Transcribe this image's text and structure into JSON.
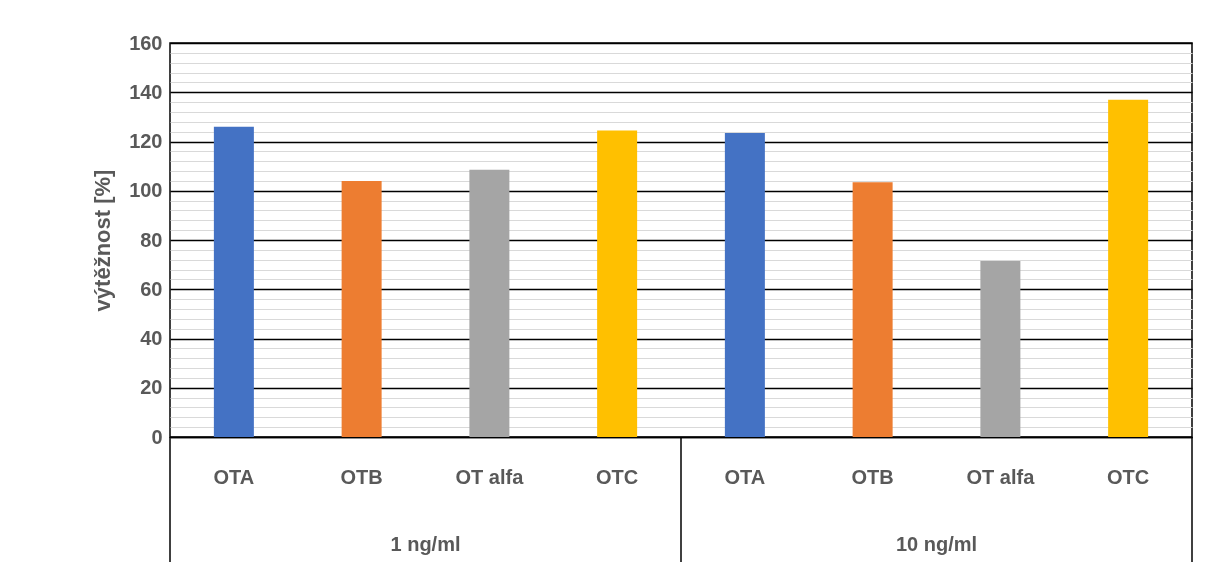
{
  "chart_data": {
    "type": "bar",
    "ylabel": "výtěžnost [%]",
    "categories": [
      "OTA",
      "OTB",
      "OT alfa",
      "OTC",
      "OTA",
      "OTB",
      "OT alfa",
      "OTC"
    ],
    "values": [
      126,
      104,
      108.5,
      124.5,
      123.5,
      103.5,
      71.5,
      137
    ],
    "colors": [
      "#4472c4",
      "#ed7d31",
      "#a5a5a5",
      "#ffc000",
      "#4472c4",
      "#ed7d31",
      "#a5a5a5",
      "#ffc000"
    ],
    "ylim": [
      0,
      160
    ],
    "yticks": [
      0,
      {
        "value": 4,
        "label": null
      },
      {
        "value": 8,
        "label": null
      },
      {
        "value": 12,
        "label": null
      },
      {
        "value": 16,
        "label": null
      },
      20,
      {
        "value": 24,
        "label": null
      },
      {
        "value": 28,
        "label": null
      },
      {
        "value": 32,
        "label": null
      },
      {
        "value": 36,
        "label": null
      },
      40,
      {
        "value": 44,
        "label": null
      },
      {
        "value": 48,
        "label": null
      },
      {
        "value": 52,
        "label": null
      },
      {
        "value": 56,
        "label": null
      },
      60,
      {
        "value": 64,
        "label": null
      },
      {
        "value": 68,
        "label": null
      },
      {
        "value": 72,
        "label": null
      },
      {
        "value": 76,
        "label": null
      },
      80,
      {
        "value": 84,
        "label": null
      },
      {
        "value": 88,
        "label": null
      },
      {
        "value": 92,
        "label": null
      },
      {
        "value": 96,
        "label": null
      },
      100,
      {
        "value": 104,
        "label": null
      },
      {
        "value": 108,
        "label": null
      },
      {
        "value": 112,
        "label": null
      },
      {
        "value": 116,
        "label": null
      },
      120,
      {
        "value": 124,
        "label": null
      },
      {
        "value": 128,
        "label": null
      },
      {
        "value": 132,
        "label": null
      },
      {
        "value": 136,
        "label": null
      },
      140,
      {
        "value": 144,
        "label": null
      },
      {
        "value": 148,
        "label": null
      },
      {
        "value": 152,
        "label": null
      },
      {
        "value": 156,
        "label": null
      },
      160
    ],
    "grid": true,
    "annotations": [
      "1 ng/ml",
      "10 ng/ml"
    ]
  }
}
